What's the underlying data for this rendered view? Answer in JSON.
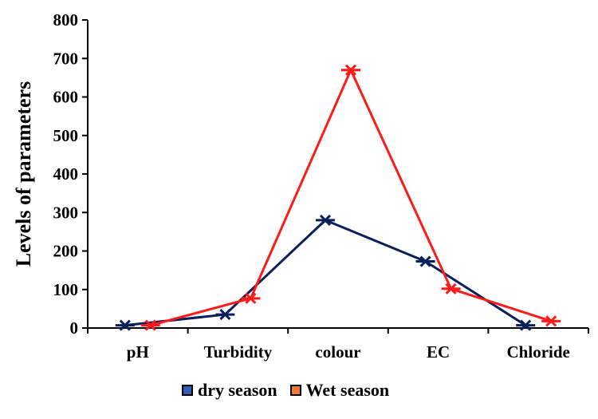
{
  "chart_data": {
    "type": "line",
    "categories": [
      "pH",
      "Turbidity",
      "colour",
      "EC",
      "Chloride"
    ],
    "ylabel": "Levels of parameters",
    "xlabel": "",
    "ylim": [
      0,
      800
    ],
    "yticks": [
      0,
      100,
      200,
      300,
      400,
      500,
      600,
      700,
      800
    ],
    "grid": false,
    "legend_position": "bottom",
    "series": [
      {
        "name": "dry season",
        "color": "#0a1f5c",
        "swatch_color": "#2f5fb5",
        "marker": "x",
        "values": [
          7,
          35,
          280,
          173,
          7
        ]
      },
      {
        "name": "Wet season",
        "color": "#ff1a1a",
        "swatch_color": "#f07830",
        "marker": "x",
        "values": [
          7,
          77,
          670,
          102,
          18
        ]
      }
    ]
  }
}
